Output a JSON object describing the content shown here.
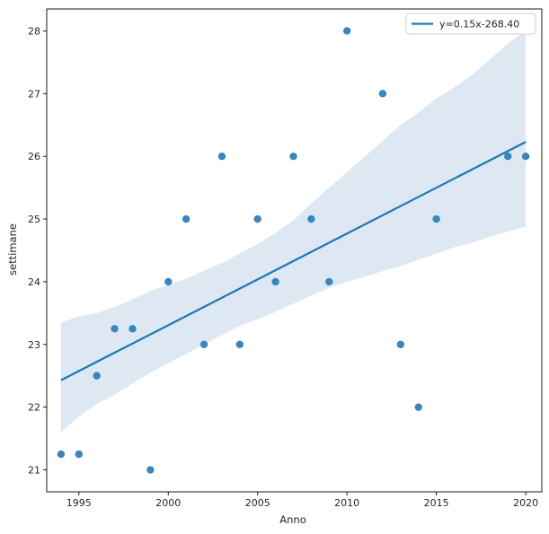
{
  "chart_data": {
    "type": "scatter",
    "xlabel": "Anno",
    "ylabel": "settimane",
    "xlim": [
      1993.2,
      2020.9
    ],
    "ylim": [
      20.65,
      28.35
    ],
    "xticks": [
      1995,
      2000,
      2005,
      2010,
      2015,
      2020
    ],
    "yticks": [
      21,
      22,
      23,
      24,
      25,
      26,
      27,
      28
    ],
    "legend_position": "top-right",
    "grid": false,
    "point_color": "#3a85bd",
    "line_color": "#1f77b4",
    "band_color": "#dde8f3",
    "points": [
      {
        "x": 1994,
        "y": 21.25
      },
      {
        "x": 1995,
        "y": 21.25
      },
      {
        "x": 1996,
        "y": 22.5
      },
      {
        "x": 1997,
        "y": 23.25
      },
      {
        "x": 1998,
        "y": 23.25
      },
      {
        "x": 1999,
        "y": 21
      },
      {
        "x": 2000,
        "y": 24
      },
      {
        "x": 2001,
        "y": 25
      },
      {
        "x": 2002,
        "y": 23
      },
      {
        "x": 2003,
        "y": 26
      },
      {
        "x": 2004,
        "y": 23
      },
      {
        "x": 2005,
        "y": 25
      },
      {
        "x": 2006,
        "y": 24
      },
      {
        "x": 2007,
        "y": 26
      },
      {
        "x": 2008,
        "y": 25
      },
      {
        "x": 2009,
        "y": 24
      },
      {
        "x": 2010,
        "y": 28
      },
      {
        "x": 2012,
        "y": 27
      },
      {
        "x": 2013,
        "y": 23
      },
      {
        "x": 2014,
        "y": 22
      },
      {
        "x": 2015,
        "y": 25
      },
      {
        "x": 2019,
        "y": 26
      },
      {
        "x": 2020,
        "y": 26
      }
    ],
    "regression": {
      "label": "y=0.15x-268.40",
      "x": [
        1994,
        2020
      ],
      "y": [
        22.43,
        26.23
      ]
    },
    "confidence_band": {
      "x": [
        1994,
        1995,
        1996,
        1997,
        1998,
        1999,
        2000,
        2001,
        2002,
        2003,
        2004,
        2005,
        2006,
        2007,
        2008,
        2009,
        2010,
        2011,
        2012,
        2013,
        2014,
        2015,
        2016,
        2017,
        2018,
        2019,
        2020
      ],
      "upper": [
        23.35,
        23.45,
        23.5,
        23.6,
        23.72,
        23.85,
        23.95,
        24.05,
        24.18,
        24.3,
        24.45,
        24.6,
        24.78,
        24.98,
        25.25,
        25.5,
        25.75,
        26.0,
        26.25,
        26.5,
        26.7,
        26.92,
        27.1,
        27.3,
        27.55,
        27.8,
        28.0
      ],
      "lower": [
        21.6,
        21.85,
        22.05,
        22.2,
        22.38,
        22.55,
        22.7,
        22.85,
        23.0,
        23.15,
        23.3,
        23.4,
        23.52,
        23.65,
        23.78,
        23.9,
        24.0,
        24.08,
        24.17,
        24.25,
        24.35,
        24.45,
        24.55,
        24.62,
        24.72,
        24.8,
        24.88
      ]
    }
  }
}
